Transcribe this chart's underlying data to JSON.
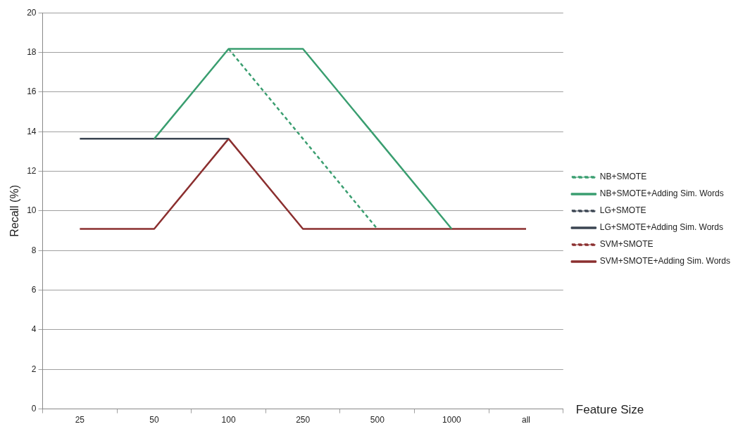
{
  "chart_data": {
    "type": "line",
    "xlabel": "Feature Size",
    "ylabel": "Recall (%)",
    "categories": [
      "25",
      "50",
      "100",
      "250",
      "500",
      "1000",
      "all"
    ],
    "ylim": [
      0,
      20
    ],
    "yticks": [
      0,
      2,
      4,
      6,
      8,
      10,
      12,
      14,
      16,
      18,
      20
    ],
    "grid": "y",
    "legend": "right",
    "marker": "none",
    "series": [
      {
        "name": "NB+SMOTE",
        "color": "#3a9e70",
        "line_style": "dashed",
        "values": [
          null,
          null,
          18.18,
          13.64,
          9.09,
          null,
          null
        ]
      },
      {
        "name": "NB+SMOTE+Adding Sim. Words",
        "color": "#3a9e70",
        "line_style": "solid",
        "values": [
          null,
          13.64,
          18.18,
          18.18,
          13.64,
          9.09,
          null
        ]
      },
      {
        "name": "LG+SMOTE",
        "color": "#3b4552",
        "line_style": "dashed",
        "values": [
          null,
          null,
          null,
          null,
          null,
          null,
          null
        ]
      },
      {
        "name": "LG+SMOTE+Adding Sim. Words",
        "color": "#3b4552",
        "line_style": "solid",
        "values": [
          13.64,
          13.64,
          13.64,
          null,
          null,
          null,
          null
        ]
      },
      {
        "name": "SVM+SMOTE",
        "color": "#8b2f2f",
        "line_style": "dashed",
        "values": [
          null,
          null,
          null,
          null,
          null,
          null,
          null
        ]
      },
      {
        "name": "SVM+SMOTE+Adding Sim. Words",
        "color": "#8b2f2f",
        "line_style": "solid",
        "values": [
          9.09,
          9.09,
          13.64,
          9.09,
          9.09,
          9.09,
          9.09
        ]
      }
    ]
  }
}
